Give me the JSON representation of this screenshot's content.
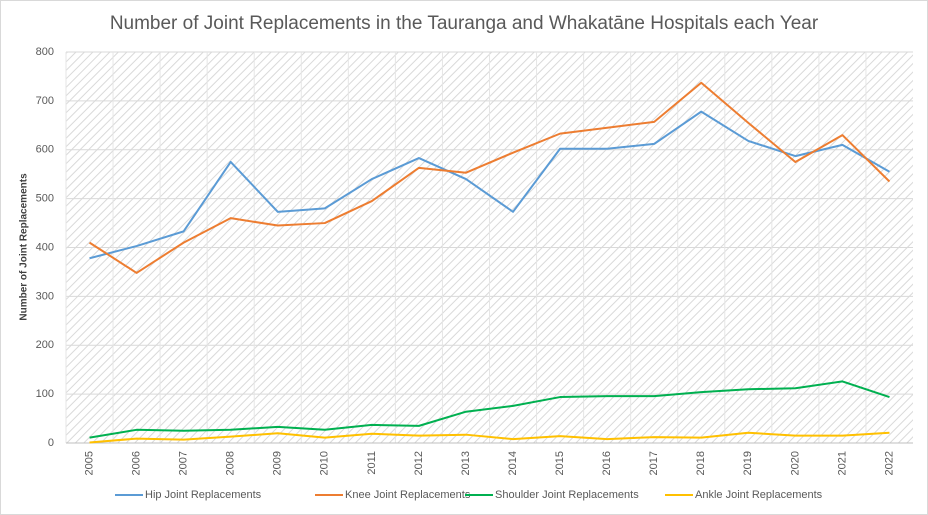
{
  "chart_data": {
    "type": "line",
    "title": "Number of Joint Replacements in the Tauranga and Whakatāne Hospitals each Year",
    "y_label": "Number of Joint Replacements",
    "categories": [
      "2005",
      "2006",
      "2007",
      "2008",
      "2009",
      "2010",
      "2011",
      "2012",
      "2013",
      "2014",
      "2015",
      "2016",
      "2017",
      "2018",
      "2019",
      "2020",
      "2021",
      "2022"
    ],
    "series": [
      {
        "name": "Hip Joint Replacements",
        "color": "#5b9bd5",
        "values": [
          378,
          403,
          433,
          575,
          473,
          480,
          540,
          583,
          540,
          473,
          602,
          602,
          612,
          678,
          618,
          587,
          610,
          555
        ]
      },
      {
        "name": "Knee Joint Replacements",
        "color": "#ed7d31",
        "values": [
          410,
          348,
          410,
          460,
          445,
          450,
          495,
          563,
          553,
          594,
          633,
          645,
          657,
          737,
          655,
          575,
          630,
          535
        ]
      },
      {
        "name": "Shoulder Joint Replacements",
        "color": "#00b050",
        "values": [
          11,
          27,
          25,
          27,
          33,
          27,
          37,
          35,
          64,
          76,
          94,
          96,
          96,
          104,
          110,
          112,
          126,
          94
        ]
      },
      {
        "name": "Ankle Joint Replacements",
        "color": "#ffc000",
        "values": [
          1,
          9,
          7,
          13,
          20,
          11,
          19,
          15,
          17,
          8,
          14,
          8,
          12,
          11,
          21,
          15,
          15,
          21
        ]
      }
    ],
    "ylim": [
      0,
      800
    ],
    "yticks": [
      0,
      100,
      200,
      300,
      400,
      500,
      600,
      700,
      800
    ],
    "grid": true,
    "legend": "bottom"
  }
}
